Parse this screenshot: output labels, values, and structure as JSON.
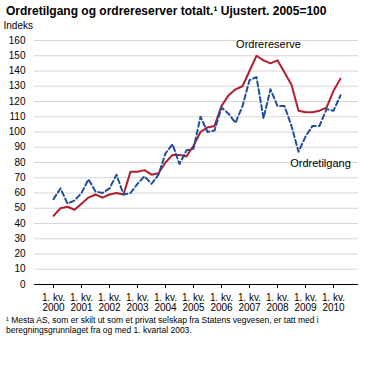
{
  "chart_data": {
    "type": "line",
    "title": "Ordretilgang og ordrereserver totalt.¹ Ujustert. 2005=100",
    "y_label": "Indeks",
    "footnote": "¹ Mesta AS, som er skilt ut som et privat selskap fra Statens vegvesen, er tatt med i beregningsgrunnlaget fra og med 1. kvartal 2003.",
    "categories": [
      "1. kv.\n2000",
      null,
      null,
      null,
      "1. kv.\n2001",
      null,
      null,
      null,
      "1. kv.\n2002",
      null,
      null,
      null,
      "1. kv.\n2003",
      null,
      null,
      null,
      "1. kv.\n2004",
      null,
      null,
      null,
      "1. kv.\n2005",
      null,
      null,
      null,
      "1. kv.\n2006",
      null,
      null,
      null,
      "1. kv.\n2007",
      null,
      null,
      null,
      "1. kv.\n2008",
      null,
      null,
      null,
      "1. kv.\n2009",
      null,
      null,
      null,
      "1. kv.\n2010",
      null
    ],
    "series": [
      {
        "name": "Ordrereserve",
        "color": "#b01f2e",
        "line_style": "solid",
        "values": [
          45,
          50,
          51,
          49,
          53,
          57,
          59,
          57,
          59,
          60,
          59,
          74,
          74,
          75,
          72,
          73,
          80,
          85,
          85,
          84,
          91,
          100,
          103,
          104,
          117,
          124,
          128,
          130,
          140,
          150,
          147,
          145,
          147,
          139,
          131,
          114,
          113,
          113,
          114,
          116,
          127,
          135
        ]
      },
      {
        "name": "Ordretilgang",
        "color": "#1f4e9c",
        "line_style": "dashed",
        "values": [
          56,
          63,
          53,
          55,
          60,
          69,
          61,
          60,
          63,
          72,
          59,
          60,
          66,
          71,
          66,
          72,
          86,
          92,
          79,
          88,
          89,
          110,
          100,
          101,
          116,
          112,
          106,
          117,
          134,
          136,
          109,
          128,
          117,
          117,
          104,
          87,
          97,
          104,
          104,
          115,
          114,
          124
        ]
      }
    ],
    "ylim": [
      0,
      160
    ],
    "yticks": [
      0,
      10,
      20,
      30,
      40,
      50,
      60,
      70,
      80,
      90,
      100,
      110,
      120,
      130,
      140,
      150,
      160
    ],
    "grid": true
  }
}
